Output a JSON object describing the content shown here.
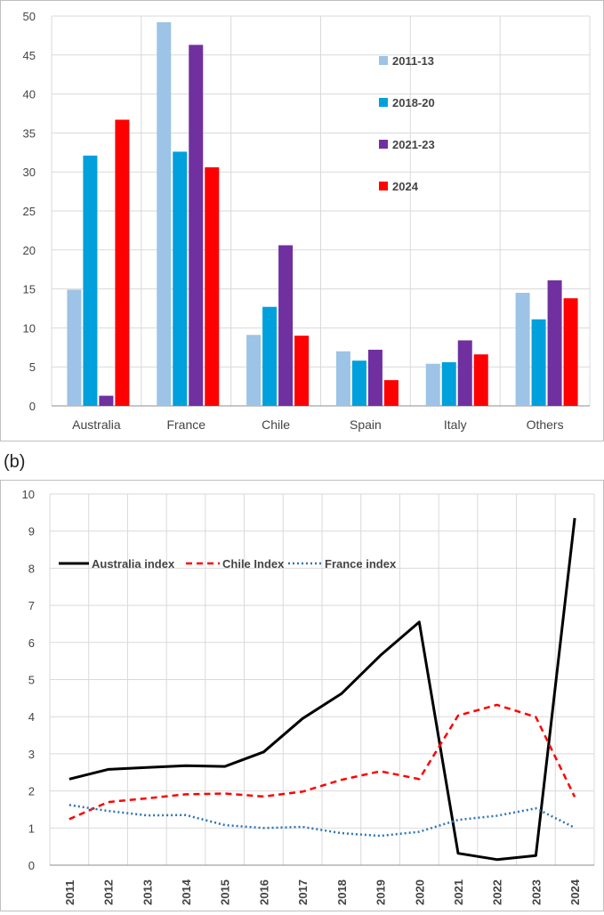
{
  "panel_b_label": "(b)",
  "chart_data": [
    {
      "type": "bar",
      "title": "",
      "xlabel": "",
      "ylabel": "",
      "ylim": [
        0,
        50
      ],
      "yticks": [
        0,
        5,
        10,
        15,
        20,
        25,
        30,
        35,
        40,
        45,
        50
      ],
      "grid": true,
      "legend_position": "top-right",
      "categories": [
        "Australia",
        "France",
        "Chile",
        "Spain",
        "Italy",
        "Others"
      ],
      "series": [
        {
          "name": "2011-13",
          "color": "#9DC3E6",
          "values": [
            14.9,
            49.2,
            9.1,
            7.0,
            5.4,
            14.5
          ]
        },
        {
          "name": "2018-20",
          "color": "#00A0DC",
          "values": [
            32.1,
            32.6,
            12.7,
            5.8,
            5.6,
            11.1
          ]
        },
        {
          "name": "2021-23",
          "color": "#7030A0",
          "values": [
            1.3,
            46.3,
            20.6,
            7.2,
            8.4,
            16.1
          ]
        },
        {
          "name": "2024",
          "color": "#FF0000",
          "values": [
            36.7,
            30.6,
            9.0,
            3.3,
            6.6,
            13.8
          ]
        }
      ]
    },
    {
      "type": "line",
      "title": "",
      "xlabel": "",
      "ylabel": "",
      "ylim": [
        0,
        10
      ],
      "yticks": [
        0,
        1,
        2,
        3,
        4,
        5,
        6,
        7,
        8,
        9,
        10
      ],
      "grid": true,
      "legend_position": "top-left",
      "x": [
        "2011",
        "2012",
        "2013",
        "2014",
        "2015",
        "2016",
        "2017",
        "2018",
        "2019",
        "2020",
        "2021",
        "2022",
        "2023",
        "2024"
      ],
      "series": [
        {
          "name": "Australia index",
          "color": "#000000",
          "style": "solid",
          "values": [
            2.32,
            2.58,
            2.63,
            2.68,
            2.66,
            3.05,
            3.95,
            4.62,
            5.65,
            6.55,
            0.32,
            0.15,
            0.26,
            9.35
          ]
        },
        {
          "name": "Chile Index",
          "color": "#FF0000",
          "style": "dashed",
          "values": [
            1.24,
            1.7,
            1.8,
            1.91,
            1.93,
            1.85,
            1.98,
            2.3,
            2.53,
            2.32,
            4.03,
            4.32,
            3.99,
            1.84
          ]
        },
        {
          "name": "France index",
          "color": "#2E75B6",
          "style": "dotted",
          "values": [
            1.62,
            1.46,
            1.34,
            1.35,
            1.08,
            1.0,
            1.03,
            0.86,
            0.79,
            0.9,
            1.22,
            1.33,
            1.53,
            1.01
          ]
        }
      ]
    }
  ]
}
